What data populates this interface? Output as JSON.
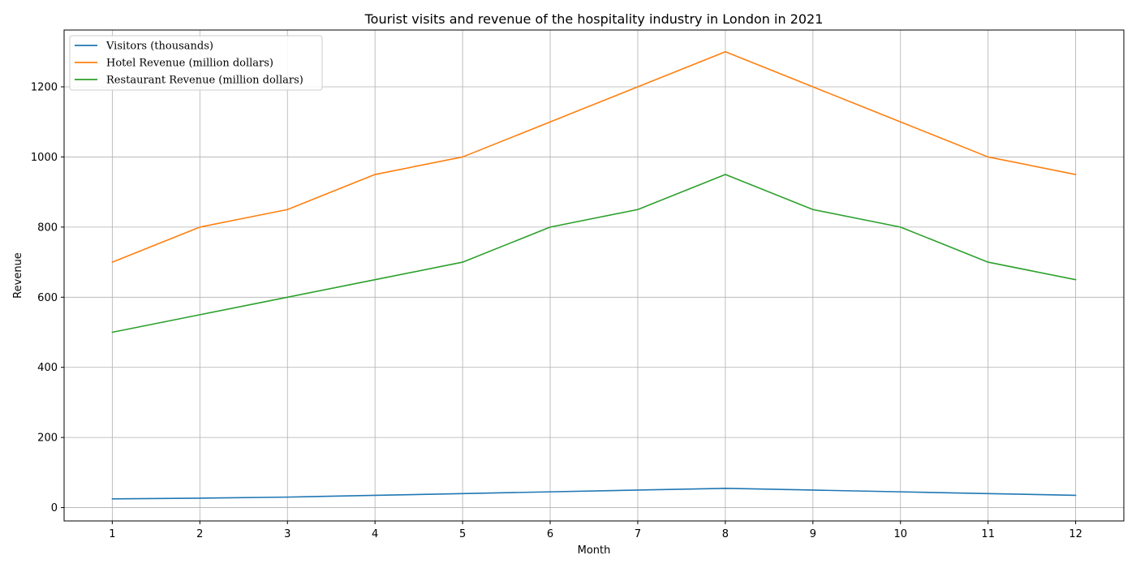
{
  "chart_data": {
    "type": "line",
    "title": "Tourist visits and revenue of the hospitality industry in London in 2021",
    "xlabel": "Month",
    "ylabel": "Revenue",
    "x": [
      1,
      2,
      3,
      4,
      5,
      6,
      7,
      8,
      9,
      10,
      11,
      12
    ],
    "xlim": [
      0.45,
      12.55
    ],
    "ylim": [
      -38,
      1362
    ],
    "yticks": [
      0,
      200,
      400,
      600,
      800,
      1000,
      1200
    ],
    "grid": true,
    "legend_position": "top-left",
    "series": [
      {
        "name": "Visitors (thousands)",
        "color": "#1f77b4",
        "values": [
          25,
          27,
          30,
          35,
          40,
          45,
          50,
          55,
          50,
          45,
          40,
          35
        ]
      },
      {
        "name": "Hotel Revenue (million dollars)",
        "color": "#ff7f0e",
        "values": [
          700,
          800,
          850,
          950,
          1000,
          1100,
          1200,
          1300,
          1200,
          1100,
          1000,
          950
        ]
      },
      {
        "name": "Restaurant Revenue (million dollars)",
        "color": "#2ca02c",
        "values": [
          500,
          550,
          600,
          650,
          700,
          800,
          850,
          950,
          850,
          800,
          700,
          650
        ]
      }
    ]
  }
}
